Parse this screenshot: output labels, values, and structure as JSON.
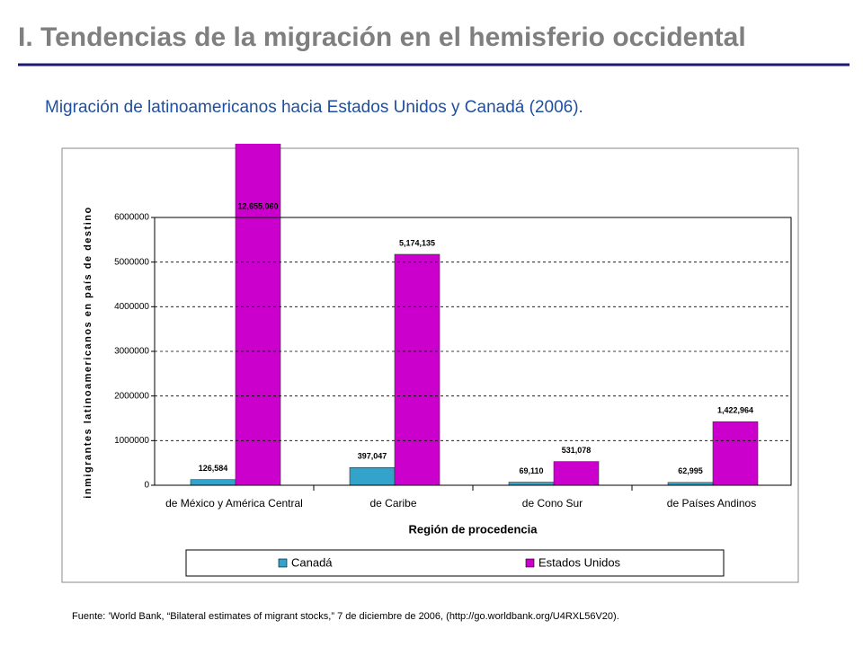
{
  "header": {
    "title": "I. Tendencias de la migración en el hemisferio occidental",
    "subtitle": "Migración de latinoamericanos hacia Estados Unidos y Canadá (2006)."
  },
  "chart_data": {
    "type": "bar",
    "categories": [
      "de México y América Central",
      "de Caribe",
      "de Cono Sur",
      "de Países Andinos"
    ],
    "series": [
      {
        "name": "Canadá",
        "color": "#33a3cc",
        "values": [
          126584,
          397047,
          69110,
          62995
        ],
        "value_labels": [
          "126,584",
          "397,047",
          "69,110",
          "62,995"
        ]
      },
      {
        "name": "Estados Unidos",
        "color": "#cc00cc",
        "values": [
          12655060,
          5174135,
          531078,
          1422964
        ],
        "value_labels": [
          "12,655,060",
          "5,174,135",
          "531,078",
          "1,422,964"
        ]
      }
    ],
    "y_label": "inmigrantes latinoamericanos en país de destino",
    "x_label": "Región de procedencia",
    "ylim": [
      0,
      6000000
    ],
    "yticks": [
      0,
      1000000,
      2000000,
      3000000,
      4000000,
      5000000,
      6000000
    ],
    "grid": true,
    "legend": "bottom"
  },
  "footer": {
    "source": "Fuente: ’World Bank, “Bilateral estimates of migrant stocks,” 7 de diciembre de 2006, (http://go.worldbank.org/U4RXL56V20)."
  }
}
